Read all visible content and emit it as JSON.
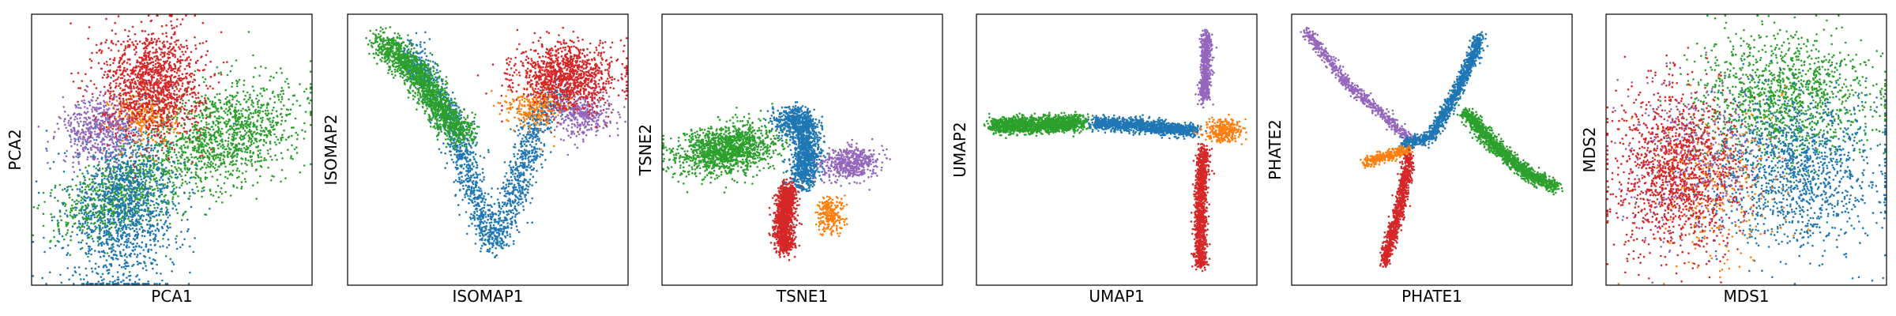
{
  "colors": {
    "blue": "#1f77b4",
    "orange": "#ff7f0e",
    "green": "#2ca02c",
    "red": "#d62728",
    "purple": "#9467bd"
  },
  "chart_data": [
    {
      "type": "scatter",
      "xlabel": "PCA1",
      "ylabel": "PCA2",
      "grid": false,
      "ticks": false,
      "clusters": [
        {
          "color": "green",
          "shape": "blob",
          "center": [
            0.3,
            0.32
          ],
          "spread": [
            0.11,
            0.07
          ],
          "angle": 22,
          "count": 700
        },
        {
          "color": "green",
          "shape": "blob",
          "center": [
            0.68,
            0.55
          ],
          "spread": [
            0.15,
            0.09
          ],
          "angle": 25,
          "count": 1300
        },
        {
          "color": "blue",
          "shape": "blob",
          "center": [
            0.33,
            0.28
          ],
          "spread": [
            0.1,
            0.16
          ],
          "angle": -5,
          "count": 1400
        },
        {
          "color": "orange",
          "shape": "blob",
          "center": [
            0.4,
            0.62
          ],
          "spread": [
            0.06,
            0.05
          ],
          "angle": 0,
          "count": 300
        },
        {
          "color": "purple",
          "shape": "blob",
          "center": [
            0.24,
            0.57
          ],
          "spread": [
            0.07,
            0.06
          ],
          "angle": 0,
          "count": 500
        },
        {
          "color": "red",
          "shape": "blob",
          "center": [
            0.43,
            0.75
          ],
          "spread": [
            0.09,
            0.1
          ],
          "angle": 0,
          "count": 1300
        }
      ]
    },
    {
      "type": "scatter",
      "xlabel": "ISOMAP1",
      "ylabel": "ISOMAP2",
      "grid": false,
      "ticks": false,
      "clusters": [
        {
          "color": "blue",
          "shape": "path",
          "path": [
            [
              0.22,
              0.88
            ],
            [
              0.38,
              0.6
            ],
            [
              0.48,
              0.25
            ],
            [
              0.52,
              0.15
            ],
            [
              0.6,
              0.35
            ],
            [
              0.68,
              0.6
            ],
            [
              0.76,
              0.72
            ]
          ],
          "width": 0.055,
          "count": 1700
        },
        {
          "color": "green",
          "shape": "path",
          "path": [
            [
              0.12,
              0.9
            ],
            [
              0.25,
              0.78
            ],
            [
              0.35,
              0.62
            ],
            [
              0.42,
              0.55
            ]
          ],
          "width": 0.055,
          "count": 1500
        },
        {
          "color": "purple",
          "shape": "blob",
          "center": [
            0.84,
            0.63
          ],
          "spread": [
            0.05,
            0.04
          ],
          "angle": 0,
          "count": 350
        },
        {
          "color": "orange",
          "shape": "blob",
          "center": [
            0.67,
            0.66
          ],
          "spread": [
            0.05,
            0.04
          ],
          "angle": 0,
          "count": 250
        },
        {
          "color": "red",
          "shape": "blob",
          "center": [
            0.78,
            0.77
          ],
          "spread": [
            0.09,
            0.06
          ],
          "angle": 0,
          "count": 1100
        }
      ]
    },
    {
      "type": "scatter",
      "xlabel": "TSNE1",
      "ylabel": "TSNE2",
      "grid": false,
      "ticks": false,
      "clusters": [
        {
          "color": "green",
          "shape": "blob",
          "center": [
            0.23,
            0.5
          ],
          "spread": [
            0.09,
            0.045
          ],
          "angle": 10,
          "count": 1400
        },
        {
          "color": "blue",
          "shape": "path",
          "path": [
            [
              0.42,
              0.6
            ],
            [
              0.5,
              0.62
            ],
            [
              0.52,
              0.5
            ],
            [
              0.5,
              0.38
            ]
          ],
          "width": 0.05,
          "count": 1400
        },
        {
          "color": "purple",
          "shape": "blob",
          "center": [
            0.67,
            0.45
          ],
          "spread": [
            0.05,
            0.03
          ],
          "angle": 10,
          "count": 500
        },
        {
          "color": "orange",
          "shape": "blob",
          "center": [
            0.6,
            0.26
          ],
          "spread": [
            0.025,
            0.035
          ],
          "angle": 0,
          "count": 250
        },
        {
          "color": "red",
          "shape": "path",
          "path": [
            [
              0.45,
              0.36
            ],
            [
              0.43,
              0.22
            ],
            [
              0.44,
              0.14
            ]
          ],
          "width": 0.035,
          "count": 1200
        }
      ]
    },
    {
      "type": "scatter",
      "xlabel": "UMAP1",
      "ylabel": "UMAP2",
      "grid": false,
      "ticks": false,
      "clusters": [
        {
          "color": "green",
          "shape": "path",
          "path": [
            [
              0.06,
              0.59
            ],
            [
              0.2,
              0.59
            ],
            [
              0.38,
              0.6
            ]
          ],
          "width": 0.03,
          "count": 1500
        },
        {
          "color": "blue",
          "shape": "path",
          "path": [
            [
              0.42,
              0.6
            ],
            [
              0.56,
              0.59
            ],
            [
              0.66,
              0.58
            ],
            [
              0.78,
              0.57
            ]
          ],
          "width": 0.025,
          "count": 1200
        },
        {
          "color": "orange",
          "shape": "blob",
          "center": [
            0.88,
            0.57
          ],
          "spread": [
            0.035,
            0.02
          ],
          "angle": 0,
          "count": 300
        },
        {
          "color": "purple",
          "shape": "path",
          "path": [
            [
              0.82,
              0.93
            ],
            [
              0.82,
              0.82
            ],
            [
              0.81,
              0.68
            ]
          ],
          "width": 0.02,
          "count": 600
        },
        {
          "color": "red",
          "shape": "path",
          "path": [
            [
              0.81,
              0.5
            ],
            [
              0.8,
              0.35
            ],
            [
              0.8,
              0.15
            ],
            [
              0.8,
              0.07
            ]
          ],
          "width": 0.022,
          "count": 1100
        }
      ]
    },
    {
      "type": "scatter",
      "xlabel": "PHATE1",
      "ylabel": "PHATE2",
      "grid": false,
      "ticks": false,
      "clusters": [
        {
          "color": "purple",
          "shape": "path",
          "path": [
            [
              0.05,
              0.94
            ],
            [
              0.2,
              0.74
            ],
            [
              0.36,
              0.6
            ],
            [
              0.42,
              0.54
            ]
          ],
          "width": 0.02,
          "count": 650
        },
        {
          "color": "blue",
          "shape": "path",
          "path": [
            [
              0.4,
              0.52
            ],
            [
              0.5,
              0.55
            ],
            [
              0.58,
              0.7
            ],
            [
              0.66,
              0.88
            ],
            [
              0.67,
              0.92
            ]
          ],
          "width": 0.022,
          "count": 1200
        },
        {
          "color": "green",
          "shape": "path",
          "path": [
            [
              0.62,
              0.64
            ],
            [
              0.72,
              0.52
            ],
            [
              0.84,
              0.41
            ],
            [
              0.95,
              0.36
            ]
          ],
          "width": 0.025,
          "count": 1300
        },
        {
          "color": "orange",
          "shape": "path",
          "path": [
            [
              0.26,
              0.45
            ],
            [
              0.35,
              0.48
            ],
            [
              0.42,
              0.5
            ]
          ],
          "width": 0.02,
          "count": 300
        },
        {
          "color": "red",
          "shape": "path",
          "path": [
            [
              0.42,
              0.48
            ],
            [
              0.39,
              0.3
            ],
            [
              0.33,
              0.08
            ]
          ],
          "width": 0.02,
          "count": 900
        }
      ]
    },
    {
      "type": "scatter",
      "xlabel": "MDS1",
      "ylabel": "MDS2",
      "grid": false,
      "ticks": false,
      "clusters": [
        {
          "color": "green",
          "shape": "blob",
          "center": [
            0.63,
            0.69
          ],
          "spread": [
            0.16,
            0.12
          ],
          "angle": 0,
          "count": 1300
        },
        {
          "color": "blue",
          "shape": "blob",
          "center": [
            0.68,
            0.42
          ],
          "spread": [
            0.15,
            0.14
          ],
          "angle": 0,
          "count": 1300
        },
        {
          "color": "purple",
          "shape": "blob",
          "center": [
            0.32,
            0.45
          ],
          "spread": [
            0.12,
            0.15
          ],
          "angle": 0,
          "count": 450
        },
        {
          "color": "orange",
          "shape": "blob",
          "center": [
            0.4,
            0.37
          ],
          "spread": [
            0.12,
            0.14
          ],
          "angle": 0,
          "count": 300
        },
        {
          "color": "red",
          "shape": "blob",
          "center": [
            0.25,
            0.42
          ],
          "spread": [
            0.11,
            0.15
          ],
          "angle": 0,
          "count": 1300
        }
      ]
    }
  ]
}
